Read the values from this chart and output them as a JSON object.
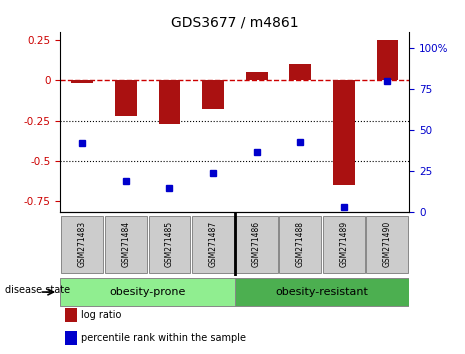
{
  "title": "GDS3677 / m4861",
  "samples": [
    "GSM271483",
    "GSM271484",
    "GSM271485",
    "GSM271487",
    "GSM271486",
    "GSM271488",
    "GSM271489",
    "GSM271490"
  ],
  "log_ratios": [
    -0.02,
    -0.22,
    -0.27,
    -0.18,
    0.05,
    0.1,
    -0.65,
    0.25
  ],
  "percentile_ranks": [
    42,
    19,
    15,
    24,
    37,
    43,
    3,
    80
  ],
  "groups": [
    {
      "label": "obesity-prone",
      "color": "#90ee90",
      "start": 0,
      "end": 4
    },
    {
      "label": "obesity-resistant",
      "color": "#4caf50",
      "start": 4,
      "end": 8
    }
  ],
  "bar_color": "#aa1111",
  "dot_color": "#0000cc",
  "ylim_left": [
    -0.82,
    0.3
  ],
  "ylim_right": [
    0,
    110
  ],
  "yticks_left": [
    -0.75,
    -0.5,
    -0.25,
    0,
    0.25
  ],
  "yticks_right": [
    0,
    25,
    50,
    75,
    100
  ],
  "hline_color": "#cc0000",
  "dotted_lines": [
    -0.25,
    -0.5
  ],
  "disease_state_label": "disease state",
  "legend_items": [
    {
      "label": "log ratio",
      "color": "#aa1111"
    },
    {
      "label": "percentile rank within the sample",
      "color": "#0000cc"
    }
  ],
  "sample_box_color": "#cccccc",
  "title_fontsize": 10,
  "tick_fontsize": 7.5,
  "label_fontsize": 7,
  "group_fontsize": 8
}
